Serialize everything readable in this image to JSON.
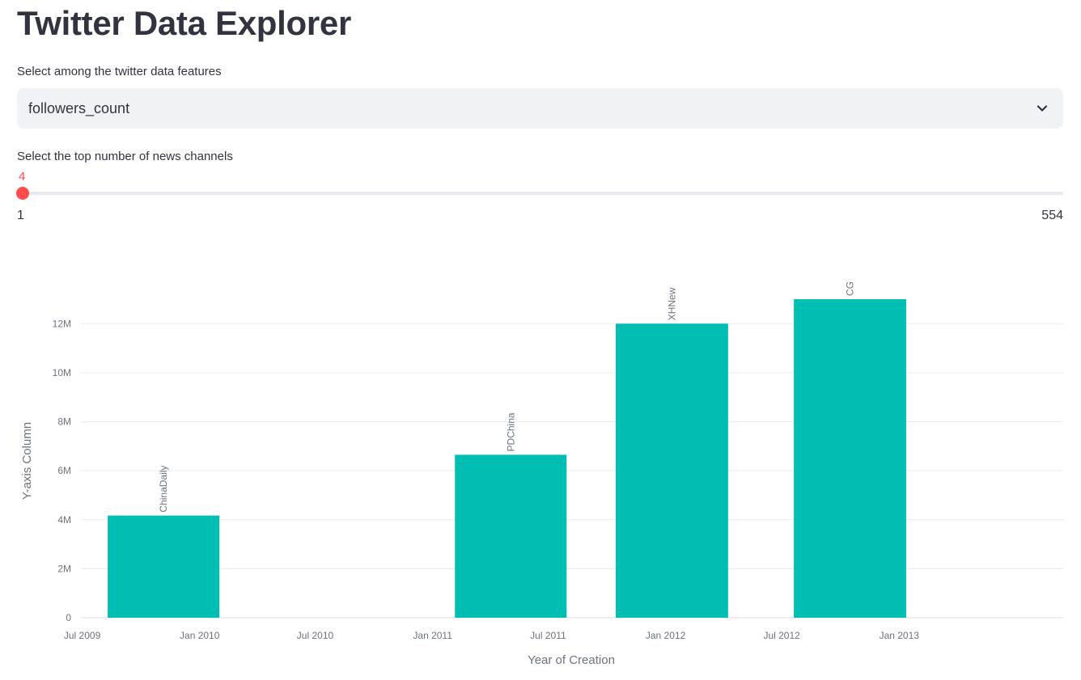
{
  "page": {
    "title": "Twitter Data Explorer"
  },
  "feature_select": {
    "label": "Select among the twitter data features",
    "value": "followers_count",
    "icon": "chevron-down-icon"
  },
  "top_slider": {
    "label": "Select the top number of news channels",
    "value": "4",
    "min": "1",
    "max": "554",
    "value_num": 4,
    "min_num": 1,
    "max_num": 554
  },
  "colors": {
    "bar": "#00bfb2",
    "accent": "#ff4b4b",
    "track": "#e6e8ee",
    "select_bg": "#f0f2f6",
    "text": "#31333f",
    "grid": "#e8eaf0"
  },
  "chart_data": {
    "type": "bar",
    "xlabel": "Year of Creation",
    "ylabel": "Y-axis Column",
    "x_ticks": [
      "Jul 2009",
      "Jan 2010",
      "Jul 2010",
      "Jan 2011",
      "Jul 2011",
      "Jan 2012",
      "Jul 2012",
      "Jan 2013"
    ],
    "x_tick_dates": [
      "2009-07-01",
      "2010-01-01",
      "2010-07-01",
      "2011-01-01",
      "2011-07-01",
      "2012-01-01",
      "2012-07-01",
      "2013-01-01"
    ],
    "x_range": [
      "2009-06-29",
      "2013-09-15"
    ],
    "y_ticks": [
      "0",
      "2M",
      "4M",
      "6M",
      "8M",
      "10M",
      "12M"
    ],
    "y_tick_values": [
      0,
      2000000,
      4000000,
      6000000,
      8000000,
      10000000,
      12000000
    ],
    "ylim": [
      0,
      13000000
    ],
    "grid": true,
    "bars": [
      {
        "label": "ChinaDaily",
        "start": "2009-08-10",
        "end": "2010-02-01",
        "value": 4170000
      },
      {
        "label": "PDChina",
        "start": "2011-02-05",
        "end": "2011-07-30",
        "value": 6650000
      },
      {
        "label": "XHNew",
        "start": "2011-10-15",
        "end": "2012-04-08",
        "value": 12000000
      },
      {
        "label": "CG",
        "start": "2012-07-20",
        "end": "2013-01-12",
        "value": 13000000
      }
    ]
  }
}
